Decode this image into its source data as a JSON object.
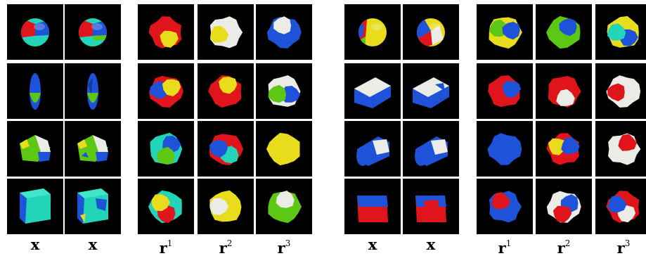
{
  "figure": {
    "panels": [
      {
        "columns": [
          {
            "label": "x",
            "hat": false,
            "sup": ""
          },
          {
            "label": "x",
            "hat": true,
            "sup": ""
          },
          {
            "label": "r",
            "hat": false,
            "sup": "1"
          },
          {
            "label": "r",
            "hat": false,
            "sup": "2"
          },
          {
            "label": "r",
            "hat": false,
            "sup": "3"
          }
        ]
      },
      {
        "columns": [
          {
            "label": "x",
            "hat": false,
            "sup": ""
          },
          {
            "label": "x",
            "hat": true,
            "sup": ""
          },
          {
            "label": "r",
            "hat": false,
            "sup": "1"
          },
          {
            "label": "r",
            "hat": false,
            "sup": "2"
          },
          {
            "label": "r",
            "hat": false,
            "sup": "3"
          }
        ]
      }
    ],
    "hat_glyph": "^"
  },
  "colors": {
    "background": "#000000",
    "red": "#e0141b",
    "yellow": "#e8dc1c",
    "green": "#5cc814",
    "blue": "#1e52d8",
    "cyan": "#22d4b8",
    "white": "#ecece6"
  }
}
